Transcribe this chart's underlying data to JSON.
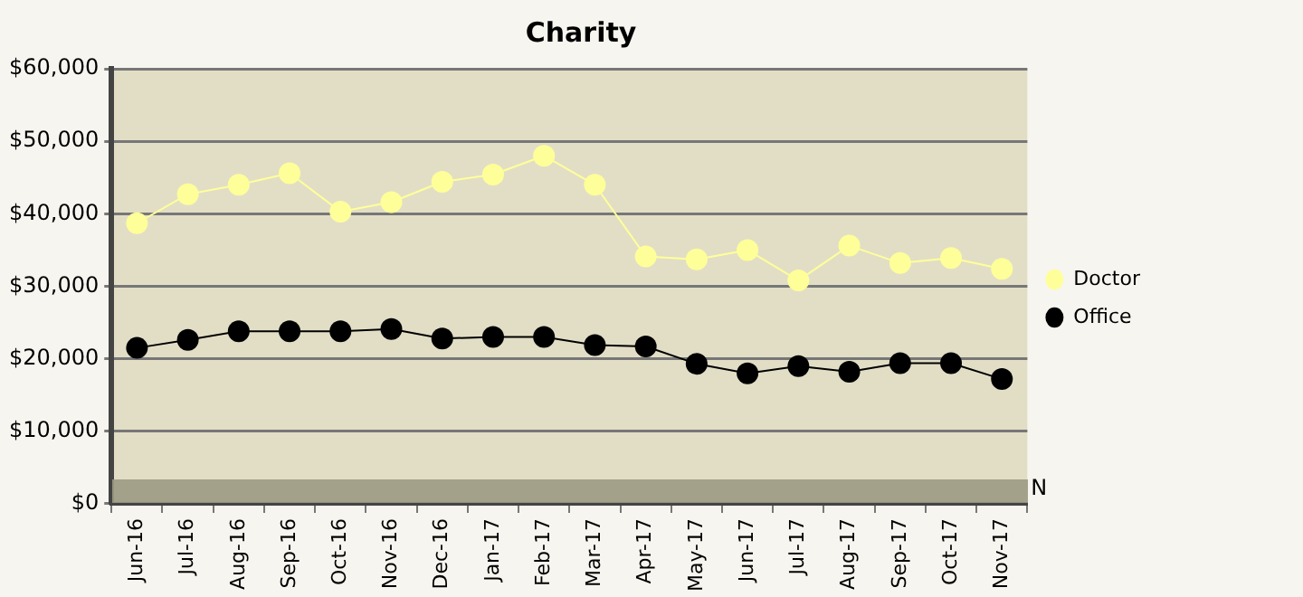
{
  "chart_data": {
    "type": "line",
    "title": "Charity",
    "categories": [
      "Jun-16",
      "Jul-16",
      "Aug-16",
      "Sep-16",
      "Oct-16",
      "Nov-16",
      "Dec-16",
      "Jan-17",
      "Feb-17",
      "Mar-17",
      "Apr-17",
      "May-17",
      "Jun-17",
      "Jul-17",
      "Aug-17",
      "Sep-17",
      "Oct-17",
      "Nov-17"
    ],
    "series": [
      {
        "name": "Doctor",
        "color": "#ffff99",
        "values": [
          38700,
          42700,
          44000,
          45600,
          40300,
          41600,
          44400,
          45400,
          48000,
          44000,
          34100,
          33700,
          35000,
          30800,
          35600,
          33200,
          33900,
          32400
        ]
      },
      {
        "name": "Office",
        "color": "#000000",
        "values": [
          21500,
          22600,
          23800,
          23800,
          23800,
          24100,
          22800,
          23000,
          23000,
          21900,
          21700,
          19300,
          18000,
          19000,
          18200,
          19400,
          19400,
          17200
        ]
      }
    ],
    "ylim": [
      0,
      60000
    ],
    "yticks": [
      {
        "value": 0,
        "label": "$0"
      },
      {
        "value": 10000,
        "label": "$10,000"
      },
      {
        "value": 20000,
        "label": "$20,000"
      },
      {
        "value": 30000,
        "label": "$30,000"
      },
      {
        "value": 40000,
        "label": "$40,000"
      },
      {
        "value": 50000,
        "label": "$50,000"
      },
      {
        "value": 60000,
        "label": "$60,000"
      }
    ],
    "grid": "y",
    "legend": "right",
    "marker": "circle",
    "annotations": [
      "N"
    ]
  }
}
